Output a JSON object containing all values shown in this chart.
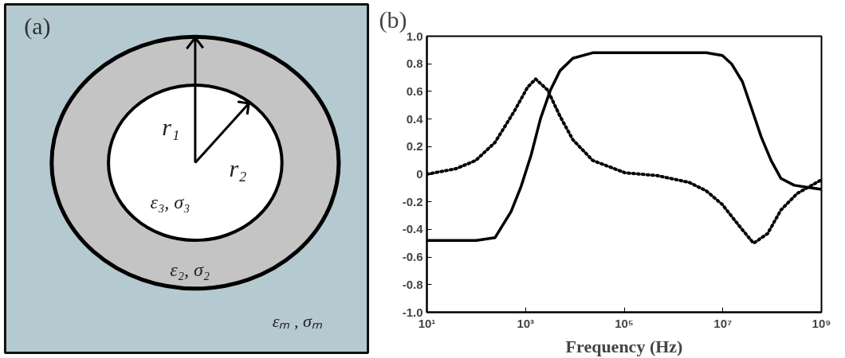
{
  "chart_data": [
    {
      "type": "other",
      "title": "(a)",
      "annotations": [
        "r₁",
        "r₂",
        "ε₃, σ₃",
        "ε₂, σ₂",
        "εₘ , σₘ"
      ]
    },
    {
      "type": "line",
      "title": "(b)",
      "xlabel": "Frequency (Hz)",
      "log": "x",
      "grid": false,
      "marker": "none",
      "xlim": [
        10,
        1000000000
      ],
      "xticks": [
        {
          "value": 10,
          "label": "10¹"
        },
        {
          "value": 1000,
          "label": "10³"
        },
        {
          "value": 100000,
          "label": "10⁵"
        },
        {
          "value": 10000000,
          "label": "10⁷"
        },
        {
          "value": 1000000000,
          "label": "10⁹"
        }
      ],
      "ylim": [
        -1,
        1
      ],
      "yticks": [
        {
          "value": -1,
          "label": "-1.0"
        },
        -0.8,
        -0.6,
        -0.4,
        -0.2,
        0,
        0.2,
        0.4,
        0.6,
        0.8,
        {
          "value": 1,
          "label": "1.0"
        }
      ],
      "series": [
        {
          "color": "#000000",
          "line_style": "solid",
          "x": [
            10,
            100,
            240,
            510,
            810,
            1300,
            2000,
            3200,
            5000,
            9100,
            23000,
            1000000,
            4600000,
            9800000,
            15000000,
            25000000,
            38000000,
            60000000,
            95000000,
            150000000,
            280000000,
            1000000000
          ],
          "values": [
            -0.48,
            -0.48,
            -0.46,
            -0.27,
            -0.09,
            0.14,
            0.4,
            0.61,
            0.75,
            0.84,
            0.88,
            0.88,
            0.88,
            0.86,
            0.8,
            0.67,
            0.48,
            0.27,
            0.1,
            -0.03,
            -0.08,
            -0.11
          ]
        },
        {
          "color": "#000000",
          "line_style": "dotted",
          "x": [
            10,
            39,
            98,
            240,
            600,
            1100,
            1600,
            2800,
            5000,
            9100,
            23000,
            105000,
            470000,
            2100000,
            4600000,
            9800000,
            21000000,
            42000000,
            81000000,
            150000000,
            320000000,
            1000000000
          ],
          "values": [
            0.0,
            0.04,
            0.1,
            0.23,
            0.46,
            0.63,
            0.69,
            0.61,
            0.42,
            0.25,
            0.1,
            0.01,
            -0.01,
            -0.06,
            -0.12,
            -0.22,
            -0.37,
            -0.5,
            -0.43,
            -0.26,
            -0.14,
            -0.04
          ]
        }
      ]
    }
  ]
}
